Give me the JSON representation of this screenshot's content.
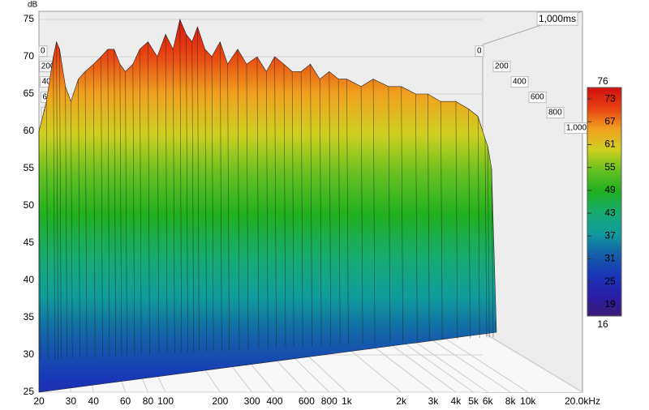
{
  "chart_data": {
    "type": "waterfall",
    "y_label": "dB",
    "ylim": [
      25,
      76
    ],
    "yticks": [
      25,
      30,
      35,
      40,
      45,
      50,
      55,
      60,
      65,
      70,
      75
    ],
    "xlim": [
      20,
      20000
    ],
    "log_x": true,
    "xticks": [
      20,
      30,
      40,
      60,
      80,
      100,
      200,
      300,
      400,
      600,
      800,
      {
        "value": 1000,
        "label": "1k"
      },
      {
        "value": 2000,
        "label": "2k"
      },
      {
        "value": 3000,
        "label": "3k"
      },
      {
        "value": 4000,
        "label": "4k"
      },
      {
        "value": 5000,
        "label": "5k"
      },
      {
        "value": 6000,
        "label": "6k"
      },
      {
        "value": 8000,
        "label": "8k"
      },
      {
        "value": 10000,
        "label": "10k"
      },
      {
        "value": 20000,
        "label": "20.0kHz"
      }
    ],
    "zticks": [
      0,
      200,
      400,
      600,
      800,
      {
        "value": 1000,
        "label": "1,000"
      }
    ],
    "z_end_label": "1,000ms",
    "x": [
      20,
      22,
      24,
      25,
      26,
      28,
      30,
      33,
      36,
      40,
      44,
      48,
      52,
      56,
      60,
      66,
      72,
      80,
      90,
      100,
      110,
      120,
      130,
      140,
      150,
      165,
      180,
      200,
      220,
      250,
      280,
      320,
      360,
      400,
      450,
      500,
      560,
      630,
      710,
      800,
      900,
      1000,
      1200,
      1400,
      1700,
      2000,
      2400,
      2800,
      3300,
      4000,
      4700,
      5300,
      5800,
      6000,
      6300
    ],
    "values": [
      60,
      64,
      70,
      72,
      71,
      66,
      64,
      67,
      68,
      69,
      70,
      71,
      71,
      69,
      68,
      69,
      71,
      72,
      70,
      73,
      71,
      75,
      73,
      72,
      74,
      71,
      70,
      72,
      69,
      71,
      69,
      70,
      68,
      70,
      69,
      68,
      68,
      69,
      67,
      68,
      67,
      67,
      66,
      67,
      66,
      66,
      65,
      65,
      64,
      64,
      63,
      62,
      59,
      58,
      55
    ],
    "colorbar": {
      "clim": [
        16,
        76
      ],
      "cticks": [
        19,
        25,
        31,
        37,
        43,
        49,
        55,
        61,
        67,
        73
      ],
      "colors": [
        "#3a1a78",
        "#2a1ea8",
        "#1838b8",
        "#1460a8",
        "#109c9c",
        "#18ac70",
        "#20b020",
        "#64c020",
        "#d0d020",
        "#f0a020",
        "#e84010",
        "#d01010"
      ]
    }
  }
}
